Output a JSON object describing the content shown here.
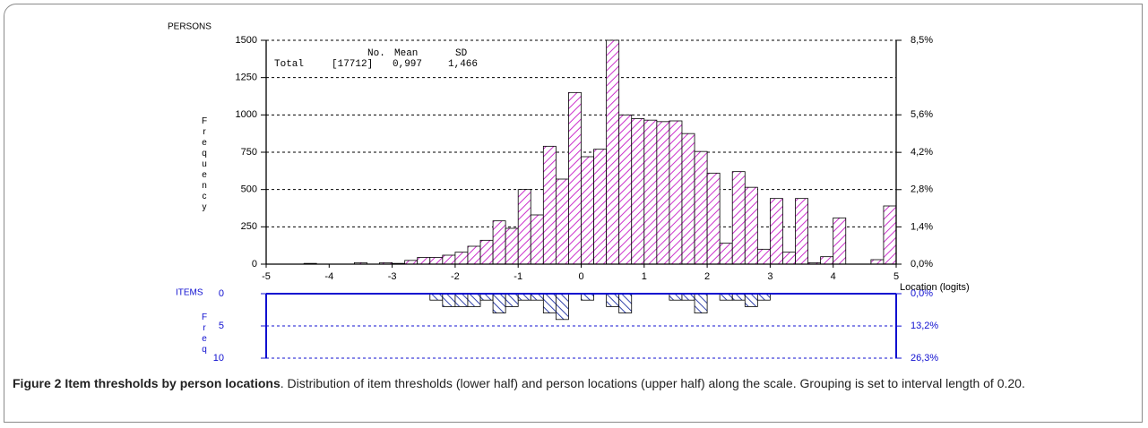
{
  "chart_data": [
    {
      "type": "histogram",
      "panel_label": "PERSONS",
      "y_label": "Frequency",
      "x_label": "Location (logits)",
      "color": "#cc33cc",
      "bins": [
        -5,
        -4.8,
        -4.6,
        -4.4,
        -4.2,
        -4,
        -3.8,
        -3.6,
        -3.4,
        -3.2,
        -3,
        -2.8,
        -2.6,
        -2.4,
        -2.2,
        -2,
        -1.8,
        -1.6,
        -1.4,
        -1.2,
        -1,
        -0.8,
        -0.6,
        -0.4,
        -0.2,
        0,
        0.2,
        0.4,
        0.6,
        0.8,
        1,
        1.2,
        1.4,
        1.6,
        1.8,
        2,
        2.2,
        2.4,
        2.6,
        2.8,
        3,
        3.2,
        3.4,
        3.6,
        3.8,
        4,
        4.2,
        4.4,
        4.6,
        4.8,
        5
      ],
      "values": [
        0,
        0,
        0,
        5,
        0,
        0,
        0,
        10,
        0,
        10,
        5,
        25,
        45,
        45,
        60,
        80,
        120,
        160,
        290,
        240,
        500,
        330,
        790,
        570,
        1150,
        720,
        770,
        1500,
        1000,
        975,
        965,
        955,
        960,
        875,
        755,
        610,
        140,
        620,
        515,
        100,
        440,
        80,
        440,
        10,
        50,
        310,
        0,
        0,
        30,
        390
      ],
      "xlim": [
        -5,
        5
      ],
      "xticks": [
        -5,
        -4,
        -3,
        -2,
        -1,
        0,
        1,
        2,
        3,
        4,
        5
      ],
      "ylim": [
        0,
        1500
      ],
      "yticks": [
        0,
        250,
        500,
        750,
        1000,
        1250,
        1500
      ],
      "y2lim": [
        0,
        8.47
      ],
      "y2ticks": [
        {
          "value": 0,
          "label": "0,0%"
        },
        {
          "value": 1.41,
          "label": "1,4%"
        },
        {
          "value": 2.82,
          "label": "2,8%"
        },
        {
          "value": 4.23,
          "label": "4,2%"
        },
        {
          "value": 5.65,
          "label": "5,6%"
        },
        {
          "value": 8.47,
          "label": "8,5%"
        }
      ],
      "grid": true,
      "stats": {
        "headers": [
          "No.",
          "Mean",
          "SD"
        ],
        "row_label": "Total",
        "values": [
          "[17712]",
          "0,997",
          "1,466"
        ]
      }
    },
    {
      "type": "histogram",
      "panel_label": "ITEMS",
      "y_label": "Freq",
      "inverted": true,
      "color": "#3344aa",
      "bins": [
        -5,
        -4.8,
        -4.6,
        -4.4,
        -4.2,
        -4,
        -3.8,
        -3.6,
        -3.4,
        -3.2,
        -3,
        -2.8,
        -2.6,
        -2.4,
        -2.2,
        -2,
        -1.8,
        -1.6,
        -1.4,
        -1.2,
        -1,
        -0.8,
        -0.6,
        -0.4,
        -0.2,
        0,
        0.2,
        0.4,
        0.6,
        0.8,
        1,
        1.2,
        1.4,
        1.6,
        1.8,
        2,
        2.2,
        2.4,
        2.6,
        2.8,
        3,
        3.2,
        3.4,
        3.6,
        3.8,
        4,
        4.2,
        4.4,
        4.6,
        4.8,
        5
      ],
      "values": [
        0,
        0,
        0,
        0,
        0,
        0,
        0,
        0,
        0,
        0,
        0,
        0,
        0,
        1,
        2,
        2,
        2,
        1,
        3,
        2,
        1,
        1,
        3,
        4,
        0,
        1,
        0,
        2,
        3,
        0,
        0,
        0,
        1,
        1,
        3,
        0,
        1,
        1,
        2,
        1,
        0,
        0,
        0,
        0,
        0,
        0,
        0,
        0,
        0,
        0
      ],
      "xlim": [
        -5,
        5
      ],
      "ylim": [
        0,
        10
      ],
      "yticks": [
        0,
        5,
        10
      ],
      "y2lim": [
        0,
        26.3
      ],
      "y2ticks": [
        {
          "value": 0,
          "label": "0,0%"
        },
        {
          "value": 13.2,
          "label": "13,2%"
        },
        {
          "value": 26.3,
          "label": "26,3%"
        }
      ],
      "grid": true
    }
  ],
  "caption": {
    "label": "Figure 2 Item thresholds by person locations",
    "text": ". Distribution of item thresholds (lower half) and person locations (upper half) along the scale. Grouping is set to interval length of 0.20."
  }
}
